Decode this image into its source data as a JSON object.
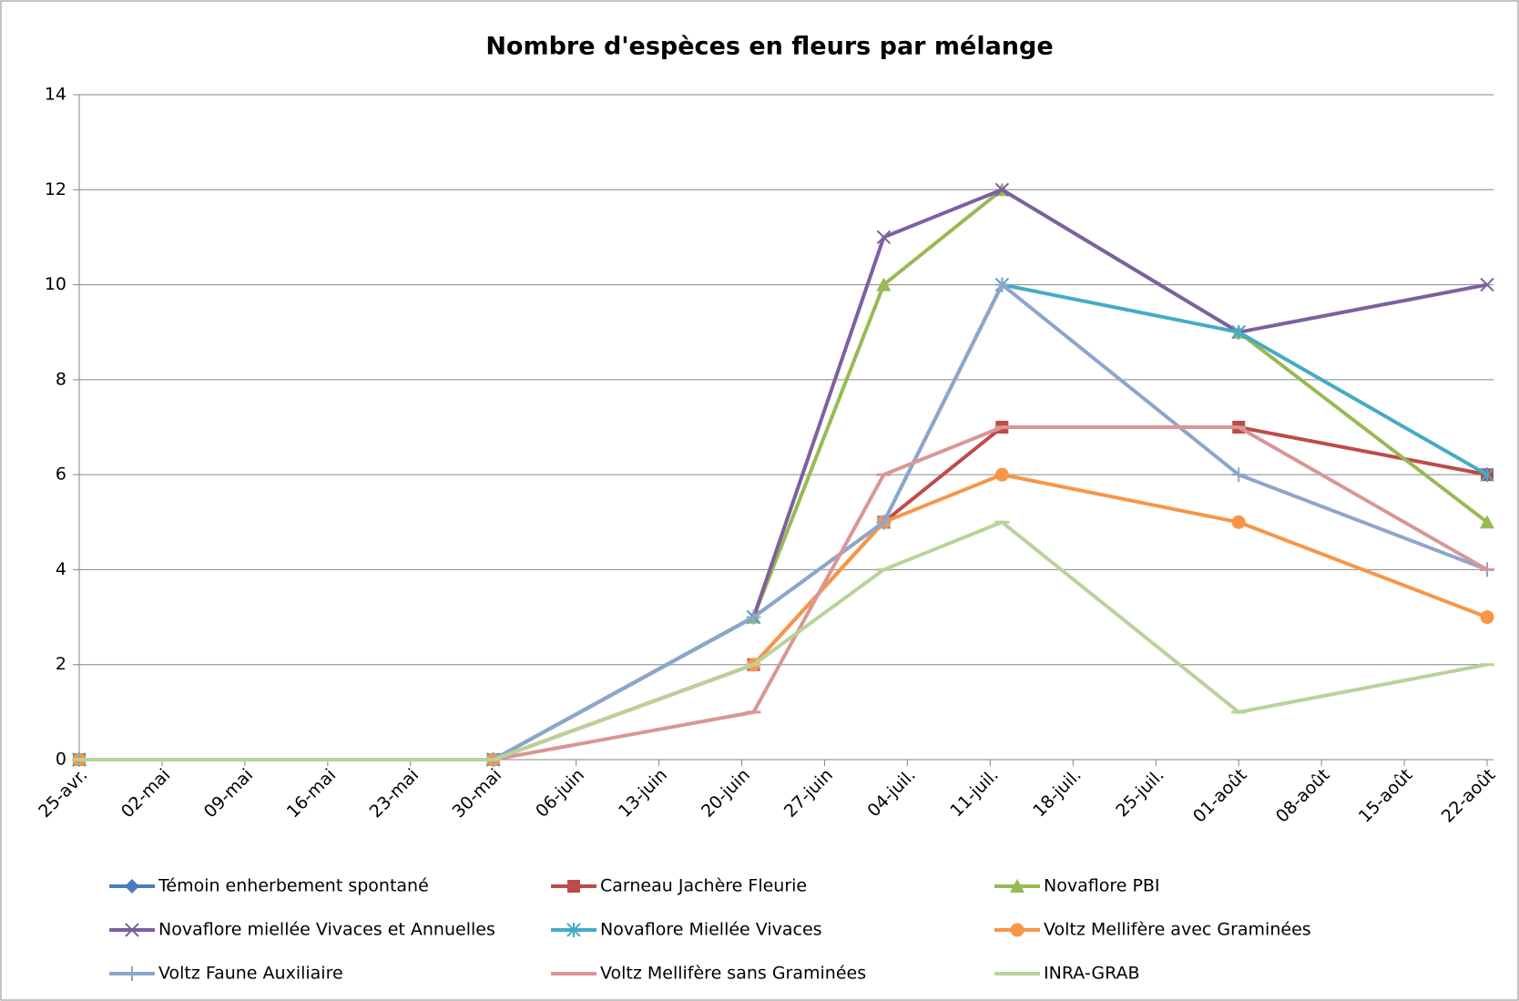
{
  "chart_data": {
    "type": "line",
    "title": "Nombre d'espèces en fleurs par mélange",
    "x": [
      "04-25",
      "05-30",
      "06-21",
      "07-02",
      "07-12",
      "08-01",
      "08-22"
    ],
    "xlim": [
      "04-25",
      "08-22"
    ],
    "xticks": [
      {
        "value": "04-25",
        "label": "25-avr."
      },
      {
        "value": "05-02",
        "label": "02-mai"
      },
      {
        "value": "05-09",
        "label": "09-mai"
      },
      {
        "value": "05-16",
        "label": "16-mai"
      },
      {
        "value": "05-23",
        "label": "23-mai"
      },
      {
        "value": "05-30",
        "label": "30-mai"
      },
      {
        "value": "06-06",
        "label": "06-juin"
      },
      {
        "value": "06-13",
        "label": "13-juin"
      },
      {
        "value": "06-20",
        "label": "20-juin"
      },
      {
        "value": "06-27",
        "label": "27-juin"
      },
      {
        "value": "07-04",
        "label": "04-juil."
      },
      {
        "value": "07-11",
        "label": "11-juil."
      },
      {
        "value": "07-18",
        "label": "18-juil."
      },
      {
        "value": "07-25",
        "label": "25-juil."
      },
      {
        "value": "08-01",
        "label": "01-août"
      },
      {
        "value": "08-08",
        "label": "08-août"
      },
      {
        "value": "08-15",
        "label": "15-août"
      },
      {
        "value": "08-22",
        "label": "22-août"
      }
    ],
    "ylim": [
      0,
      14
    ],
    "yticks": [
      0,
      2,
      4,
      6,
      8,
      10,
      12,
      14
    ],
    "grid": true,
    "legend": "bottom",
    "series": [
      {
        "name": "Témoin enherbement spontané",
        "color": "#4a7ebb",
        "marker": "diamond",
        "values": [
          0,
          0,
          null,
          null,
          null,
          null,
          null
        ]
      },
      {
        "name": "Carneau Jachère Fleurie",
        "color": "#be4b48",
        "marker": "square",
        "values": [
          0,
          0,
          2,
          5,
          7,
          7,
          6
        ]
      },
      {
        "name": "Novaflore PBI",
        "color": "#98b954",
        "marker": "triangle",
        "values": [
          0,
          0,
          3,
          10,
          12,
          9,
          5
        ]
      },
      {
        "name": "Novaflore miellée Vivaces et Annuelles",
        "color": "#7d60a0",
        "marker": "x",
        "values": [
          0,
          0,
          3,
          11,
          12,
          9,
          10
        ]
      },
      {
        "name": "Novaflore Miellée Vivaces",
        "color": "#46aac5",
        "marker": "star",
        "values": [
          0,
          0,
          3,
          5,
          10,
          9,
          6
        ]
      },
      {
        "name": "Voltz Mellifère avec Graminées",
        "color": "#f79646",
        "marker": "circle",
        "values": [
          0,
          0,
          2,
          5,
          6,
          5,
          3
        ]
      },
      {
        "name": "Voltz Faune Auxiliaire",
        "color": "#8ea5cb",
        "marker": "plus",
        "values": [
          0,
          0,
          3,
          5,
          10,
          6,
          4
        ]
      },
      {
        "name": "Voltz Mellifère sans Graminées",
        "color": "#d99694",
        "marker": "dash",
        "values": [
          0,
          0,
          1,
          6,
          7,
          7,
          4
        ]
      },
      {
        "name": "INRA-GRAB",
        "color": "#b9d29a",
        "marker": "dash",
        "values": [
          0,
          0,
          2,
          4,
          5,
          1,
          2
        ]
      }
    ]
  }
}
